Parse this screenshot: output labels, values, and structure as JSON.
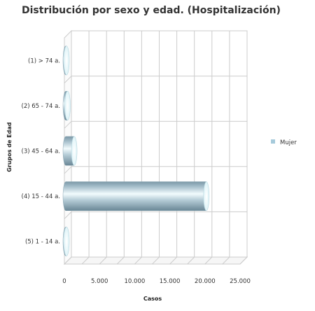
{
  "chart_data": {
    "type": "bar",
    "orientation": "horizontal",
    "style": "3d-cylinder",
    "title": "Distribución por sexo y edad. (Hospitalización)",
    "xlabel": "Casos",
    "ylabel": "Grupos de Edad",
    "categories": [
      "(1) > 74 a.",
      "(2) 65 - 74 a.",
      "(3) 45 - 64 a.",
      "(4) 15 - 44 a.",
      "(5) 1 - 14 a."
    ],
    "series": [
      {
        "name": "Mujer",
        "values": [
          300,
          450,
          1400,
          20200,
          100
        ]
      }
    ],
    "xlim": [
      0,
      25000
    ],
    "xticks": [
      0,
      5000,
      10000,
      15000,
      20000,
      25000
    ],
    "xtick_labels": [
      "0",
      "5.000",
      "10.000",
      "15.000",
      "20.000",
      "25.000"
    ],
    "grid": true,
    "legend_position": "right",
    "colors": {
      "bar": "#9fb9c6",
      "bar_dark": "#6f8d9c",
      "bar_cap": "#eef9fb",
      "grid": "#cccccc",
      "legend_swatch": "#a6cadb"
    }
  }
}
